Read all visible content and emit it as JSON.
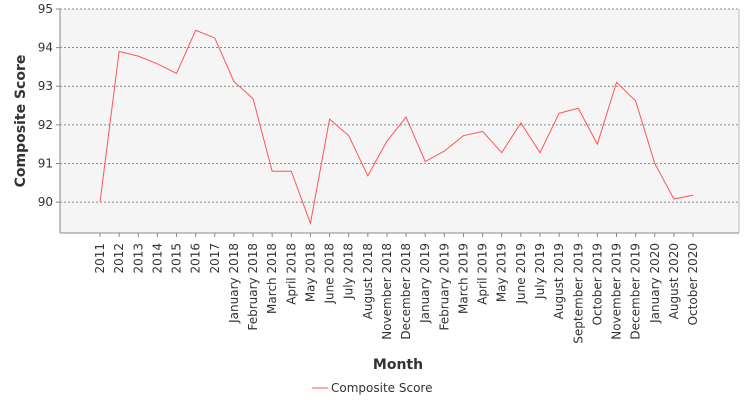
{
  "chart_data": {
    "type": "line",
    "xlabel": "Month",
    "ylabel": "Composite Score",
    "ylim": [
      89.2,
      95
    ],
    "yticks": [
      90,
      91,
      92,
      93,
      94,
      95
    ],
    "grid": true,
    "legend_position": "bottom-center",
    "categories": [
      "2011",
      "2012",
      "2013",
      "2014",
      "2015",
      "2016",
      "2017",
      "January 2018",
      "February 2018",
      "March 2018",
      "April 2018",
      "May 2018",
      "June 2018",
      "July 2018",
      "August 2018",
      "November 2018",
      "December 2018",
      "January 2019",
      "February 2019",
      "March 2019",
      "April 2019",
      "May 2019",
      "June 2019",
      "July 2019",
      "August 2019",
      "September 2019",
      "October 2019",
      "November 2019",
      "December 2019",
      "January 2020",
      "August 2020",
      "October 2020"
    ],
    "series": [
      {
        "name": "Composite Score",
        "color": "#ff5555",
        "values": [
          90.0,
          93.9,
          93.78,
          93.58,
          93.33,
          94.45,
          94.25,
          93.12,
          92.68,
          90.8,
          90.8,
          89.45,
          92.15,
          91.72,
          90.68,
          91.58,
          92.2,
          91.05,
          91.32,
          91.72,
          91.83,
          91.28,
          92.05,
          91.28,
          92.3,
          92.43,
          91.5,
          93.1,
          92.62,
          91.0,
          90.08,
          90.18
        ]
      }
    ]
  }
}
